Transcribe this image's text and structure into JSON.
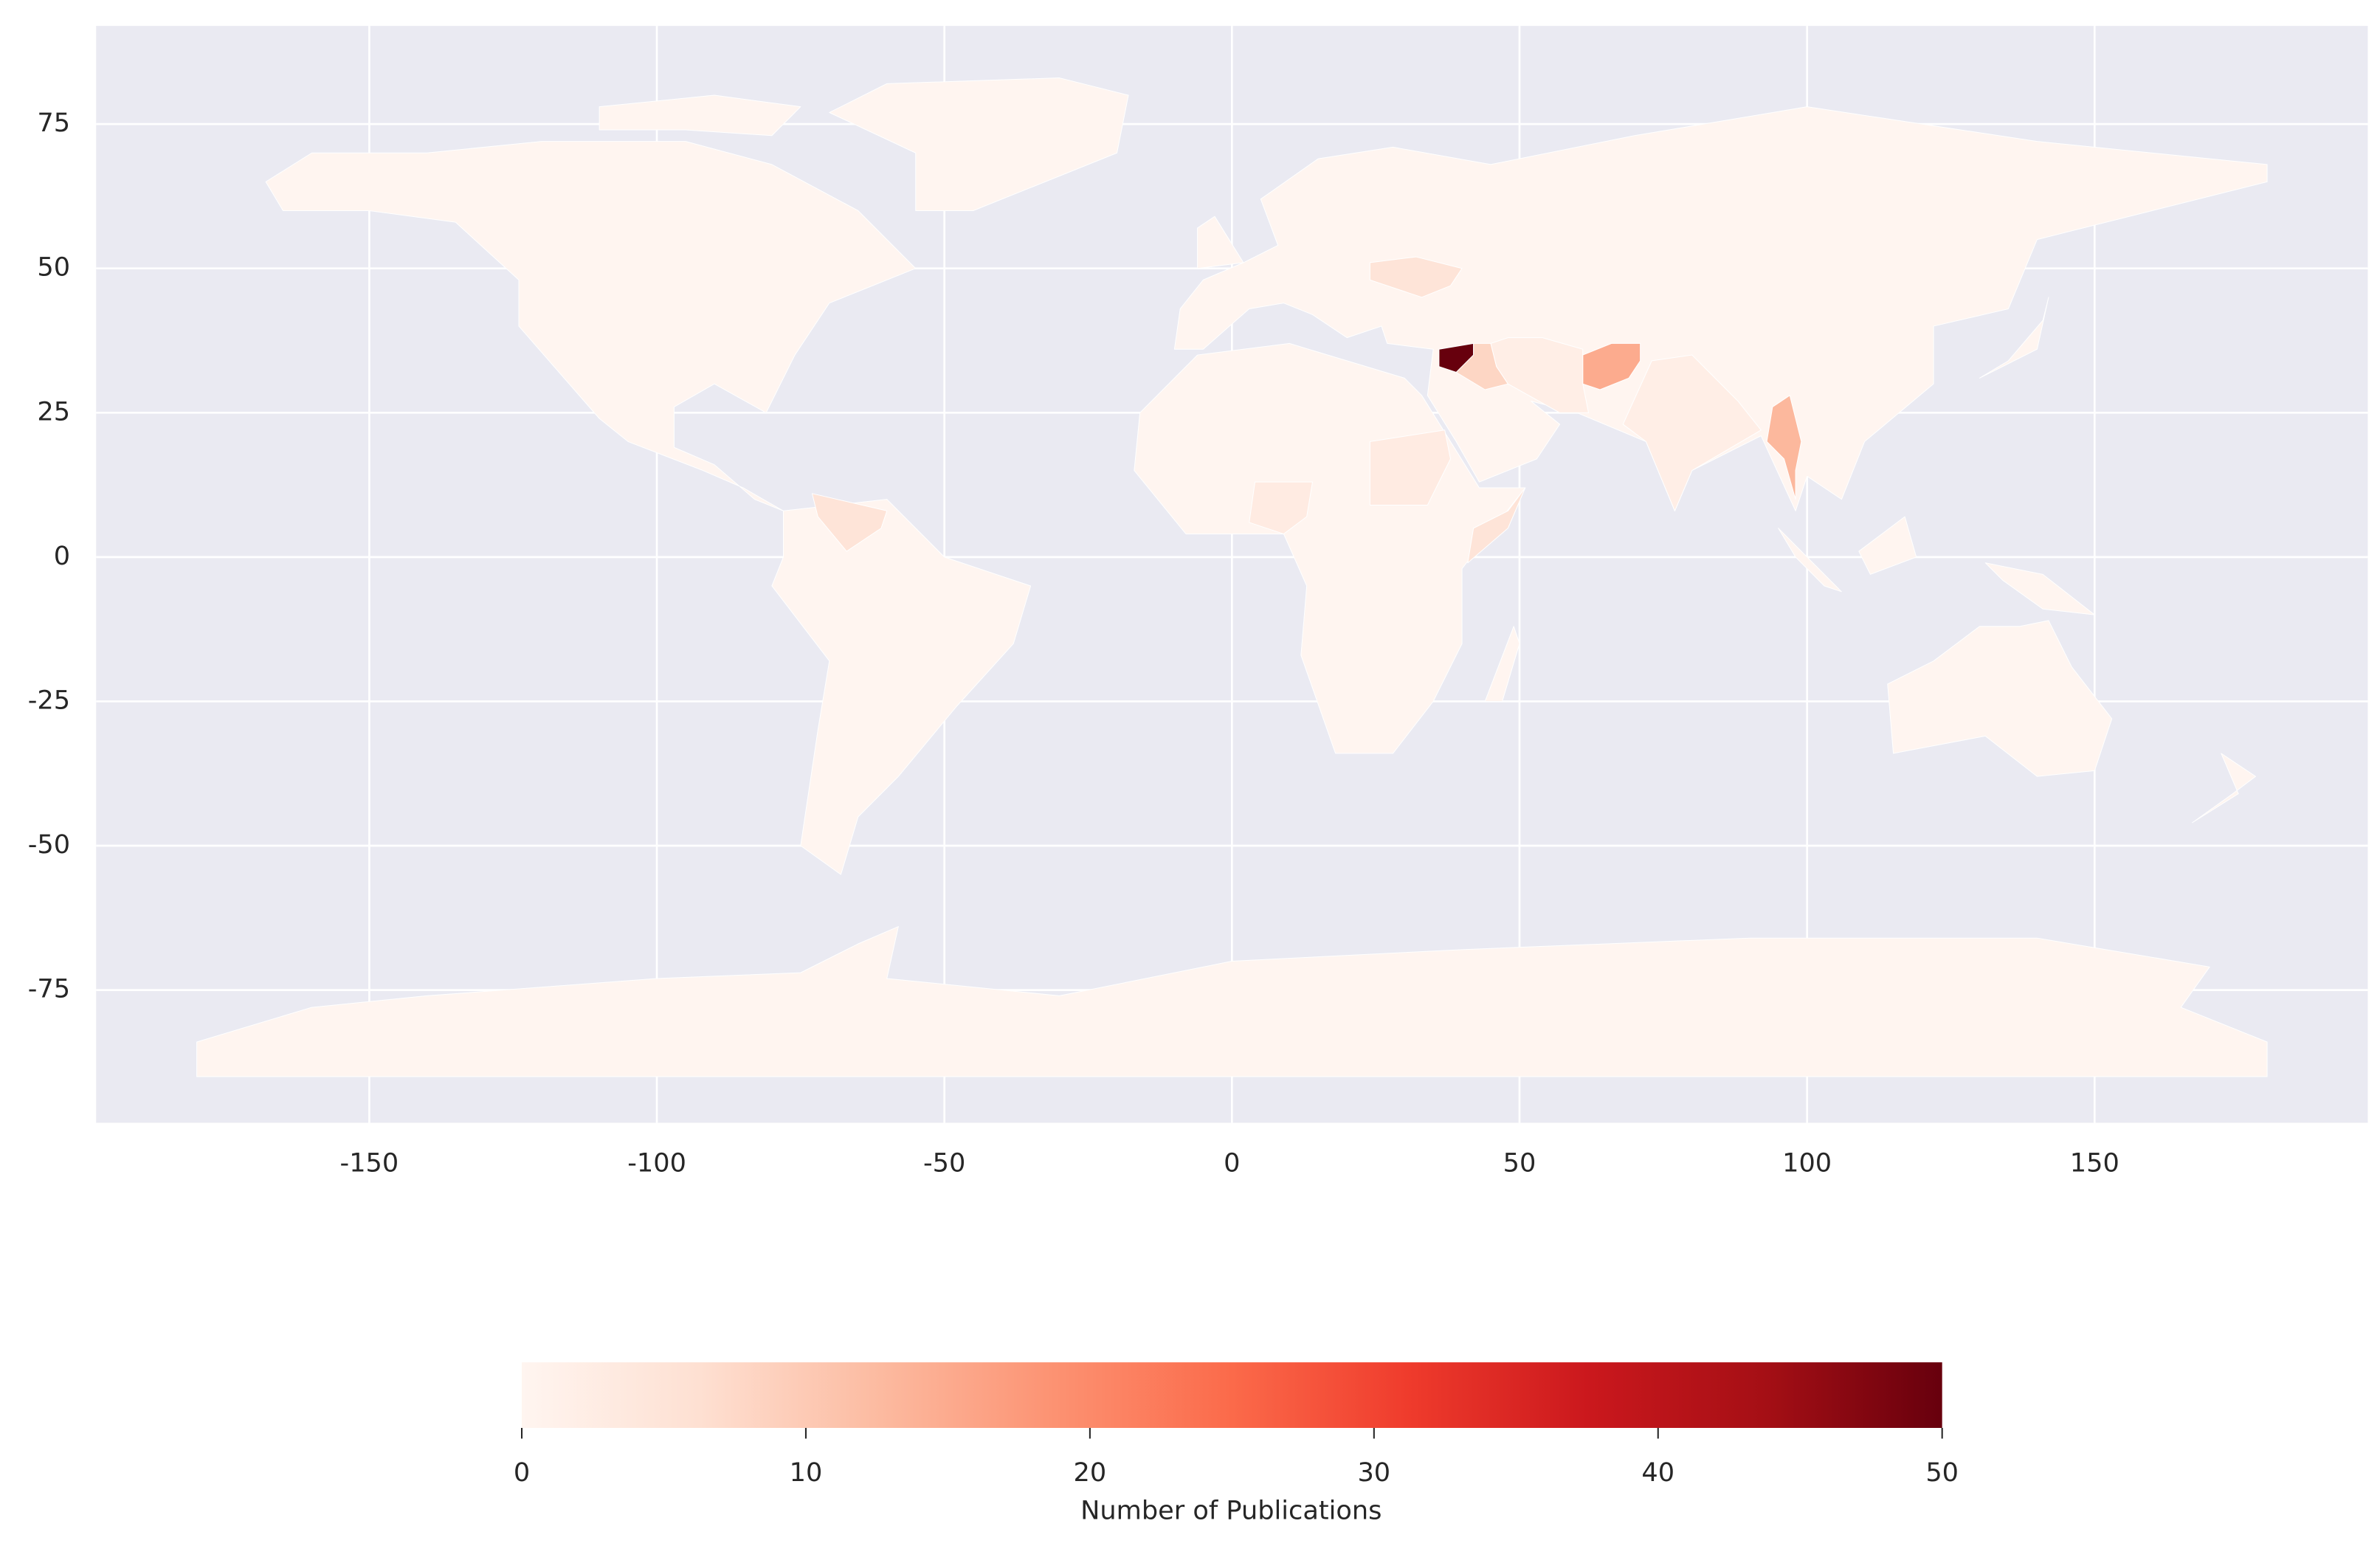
{
  "chart_data": {
    "type": "choropleth",
    "xlim": [
      -197.5,
      197.5
    ],
    "ylim": [
      -98,
      92
    ],
    "xticks": [
      -150,
      -100,
      -50,
      0,
      50,
      100,
      150
    ],
    "yticks": [
      -75,
      -50,
      -25,
      0,
      25,
      50,
      75
    ],
    "grid": true,
    "region_values": [
      50,
      8,
      15,
      13,
      5,
      5,
      5,
      3,
      3,
      2,
      2
    ],
    "colormap": [
      "#fff5f0",
      "#fee0d2",
      "#fcbba1",
      "#fc9272",
      "#fb6a4a",
      "#ef3b2c",
      "#cb181d",
      "#a50f15",
      "#67000d"
    ],
    "clim": [
      0,
      50
    ],
    "cticks": [
      0,
      10,
      20,
      30,
      40,
      50
    ],
    "colorbar_label": "Number of Publications"
  }
}
